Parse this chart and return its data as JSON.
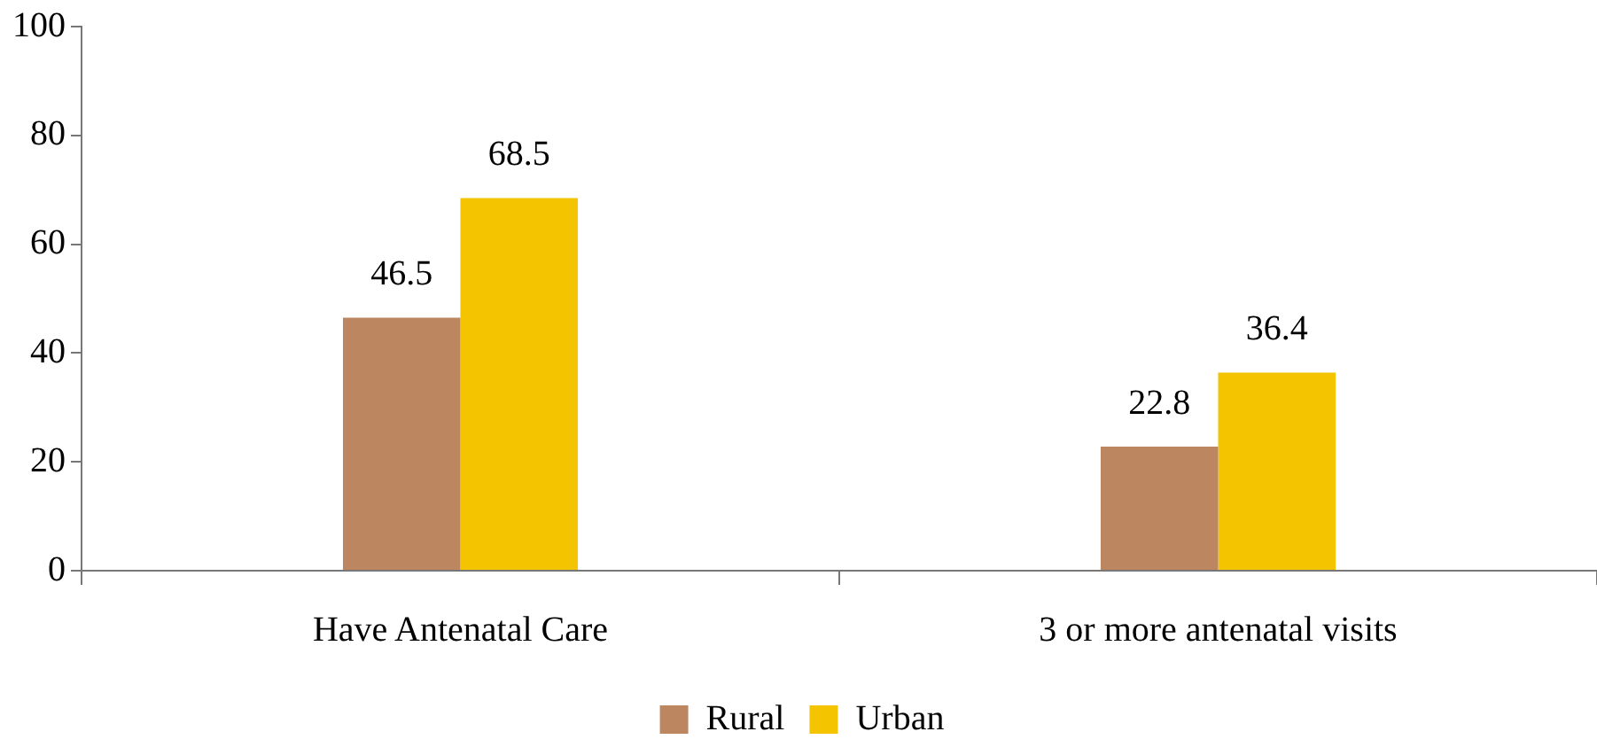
{
  "chart_data": {
    "type": "bar",
    "categories": [
      "Have Antenatal Care",
      "3 or more antenatal visits"
    ],
    "series": [
      {
        "name": "Rural",
        "color": "#bc8660",
        "values": [
          46.5,
          22.8
        ]
      },
      {
        "name": "Urban",
        "color": "#f5c400",
        "values": [
          68.5,
          36.4
        ]
      }
    ],
    "ylim": [
      0,
      100
    ],
    "yticks": [
      0,
      20,
      40,
      60,
      80,
      100
    ],
    "grid": false,
    "legend": "bottom",
    "data_labels": true
  }
}
